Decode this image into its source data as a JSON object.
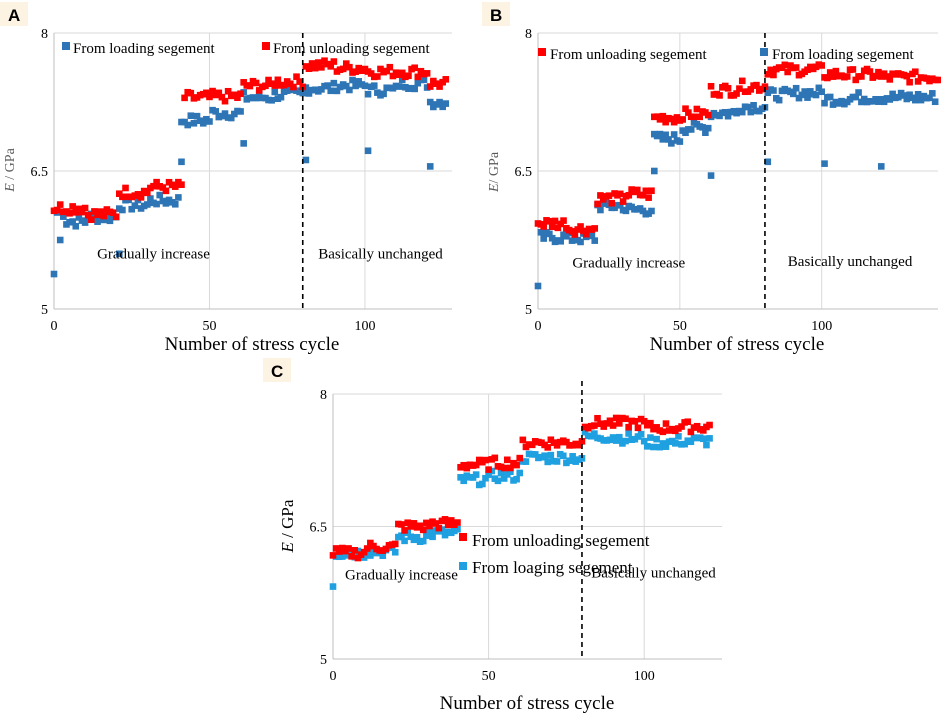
{
  "chart_data": [
    {
      "id": "A",
      "panel_label": "A",
      "type": "scatter",
      "xlabel": "Number of stress cycle",
      "ylabel_italic": "E",
      "ylabel_rest": " / GPa",
      "xlim": [
        0,
        128
      ],
      "ylim": [
        5,
        8
      ],
      "xticks": [
        "0",
        "50",
        "100"
      ],
      "yticks": [
        "5",
        "6.5",
        "8"
      ],
      "vline_x": 80,
      "annotations": [
        {
          "text": "Gradually increase",
          "x": 32,
          "y": 5.55
        },
        {
          "text": "Basically unchanged",
          "x": 105,
          "y": 5.55
        }
      ],
      "legend": [
        {
          "series": 0,
          "label": "From loading segement"
        },
        {
          "series": 1,
          "label": "From unloading segement"
        }
      ],
      "series": [
        {
          "name": "From loading segement",
          "color": "#2e75b6",
          "segments": [
            [
              1,
              3,
              6.05,
              "r"
            ],
            [
              4,
              10,
              5.95
            ],
            [
              11,
              20,
              6.0
            ],
            [
              21,
              30,
              6.13
            ],
            [
              31,
              40,
              6.18
            ],
            [
              41,
              50,
              7.05
            ],
            [
              51,
              60,
              7.13
            ],
            [
              61,
              70,
              7.3
            ],
            [
              71,
              80,
              7.33
            ],
            [
              81,
              90,
              7.4
            ],
            [
              91,
              100,
              7.43
            ],
            [
              101,
              110,
              7.38
            ],
            [
              111,
              120,
              7.45
            ],
            [
              121,
              126,
              7.25
            ]
          ],
          "outliers": [
            [
              0,
              5.38
            ],
            [
              2,
              5.75
            ],
            [
              21,
              5.6
            ],
            [
              41,
              6.6
            ],
            [
              81,
              6.62
            ],
            [
              101,
              6.72
            ],
            [
              121,
              6.55
            ],
            [
              61,
              6.8
            ]
          ]
        },
        {
          "name": "From unloading segement",
          "color": "#ff0000",
          "segments": [
            [
              0,
              10,
              6.1
            ],
            [
              11,
              20,
              6.03
            ],
            [
              21,
              30,
              6.27
            ],
            [
              31,
              41,
              6.33
            ],
            [
              42,
              50,
              7.3
            ],
            [
              51,
              60,
              7.31
            ],
            [
              61,
              70,
              7.43
            ],
            [
              71,
              80,
              7.47
            ],
            [
              81,
              90,
              7.65
            ],
            [
              91,
              100,
              7.62
            ],
            [
              101,
              110,
              7.58
            ],
            [
              111,
              120,
              7.58
            ],
            [
              121,
              126,
              7.45
            ]
          ],
          "outliers": []
        }
      ]
    },
    {
      "id": "B",
      "panel_label": "B",
      "type": "scatter",
      "xlabel": "Number of stress cycle",
      "ylabel_italic": "E",
      "ylabel_rest": "/ GPa",
      "xlim": [
        0,
        141
      ],
      "ylim": [
        5,
        8
      ],
      "xticks": [
        "0",
        "50",
        "100"
      ],
      "yticks": [
        "5",
        "6.5",
        "8"
      ],
      "vline_x": 80,
      "annotations": [
        {
          "text": "Gradually increase",
          "x": 32,
          "y": 5.45
        },
        {
          "text": "Basically unchanged",
          "x": 110,
          "y": 5.47
        }
      ],
      "legend": [
        {
          "series": 1,
          "label": "From unloading segement"
        },
        {
          "series": 0,
          "label": "From loading segement"
        }
      ],
      "series": [
        {
          "name": "From loading segement",
          "color": "#2e75b6",
          "segments": [
            [
              1,
              10,
              5.78
            ],
            [
              11,
              20,
              5.77
            ],
            [
              21,
              30,
              6.12
            ],
            [
              31,
              40,
              6.08
            ],
            [
              41,
              50,
              6.85
            ],
            [
              51,
              60,
              6.97
            ],
            [
              61,
              70,
              7.13
            ],
            [
              71,
              80,
              7.2
            ],
            [
              81,
              90,
              7.33
            ],
            [
              91,
              100,
              7.35
            ],
            [
              101,
              110,
              7.28
            ],
            [
              111,
              120,
              7.3
            ],
            [
              121,
              130,
              7.3
            ],
            [
              131,
              140,
              7.3
            ]
          ],
          "outliers": [
            [
              0,
              5.25
            ],
            [
              41,
              6.5
            ],
            [
              61,
              6.45
            ],
            [
              81,
              6.6
            ],
            [
              101,
              6.58
            ],
            [
              121,
              6.55
            ]
          ]
        },
        {
          "name": "From unloading segement",
          "color": "#ff0000",
          "segments": [
            [
              0,
              10,
              5.93
            ],
            [
              11,
              20,
              5.87
            ],
            [
              21,
              30,
              6.2
            ],
            [
              31,
              40,
              6.25
            ],
            [
              41,
              50,
              7.08
            ],
            [
              51,
              60,
              7.12
            ],
            [
              61,
              70,
              7.38
            ],
            [
              71,
              80,
              7.42
            ],
            [
              81,
              90,
              7.6
            ],
            [
              91,
              100,
              7.6
            ],
            [
              101,
              110,
              7.55
            ],
            [
              111,
              120,
              7.55
            ],
            [
              121,
              130,
              7.52
            ],
            [
              131,
              141,
              7.52
            ]
          ],
          "outliers": []
        }
      ]
    },
    {
      "id": "C",
      "panel_label": "C",
      "type": "scatter",
      "xlabel": "Number of stress cycle",
      "ylabel_italic": "E",
      "ylabel_rest": " / GPa",
      "xlim": [
        0,
        125
      ],
      "ylim": [
        5,
        8
      ],
      "xticks": [
        "0",
        "50",
        "100"
      ],
      "yticks": [
        "5",
        "6.5",
        "8"
      ],
      "vline_x": 80,
      "annotations": [
        {
          "text": "Gradually increase",
          "x": 22,
          "y": 5.9
        },
        {
          "text": "Basically unchanged",
          "x": 103,
          "y": 5.92
        }
      ],
      "legend": [
        {
          "series": 1,
          "label": "From unloading segement"
        },
        {
          "series": 0,
          "label": "From loaging segement"
        }
      ],
      "series": [
        {
          "name": "From loaging segement",
          "color": "#1fa0e0",
          "segments": [
            [
              1,
              10,
              6.2
            ],
            [
              11,
              20,
              6.22
            ],
            [
              21,
              30,
              6.38
            ],
            [
              31,
              40,
              6.42
            ],
            [
              41,
              50,
              7.03
            ],
            [
              51,
              60,
              7.07
            ],
            [
              61,
              70,
              7.28
            ],
            [
              71,
              80,
              7.28
            ],
            [
              81,
              90,
              7.52
            ],
            [
              91,
              100,
              7.5
            ],
            [
              101,
              110,
              7.45
            ],
            [
              111,
              121,
              7.47
            ]
          ],
          "outliers": [
            [
              0,
              5.82
            ]
          ]
        },
        {
          "name": "From unloading segement",
          "color": "#ff0000",
          "segments": [
            [
              0,
              10,
              6.2
            ],
            [
              11,
              20,
              6.27
            ],
            [
              21,
              30,
              6.5
            ],
            [
              31,
              40,
              6.53
            ],
            [
              41,
              50,
              7.2
            ],
            [
              51,
              60,
              7.22
            ],
            [
              61,
              70,
              7.45
            ],
            [
              71,
              80,
              7.45
            ],
            [
              81,
              90,
              7.67
            ],
            [
              91,
              100,
              7.67
            ],
            [
              101,
              110,
              7.62
            ],
            [
              111,
              121,
              7.63
            ]
          ],
          "outliers": []
        }
      ]
    }
  ]
}
